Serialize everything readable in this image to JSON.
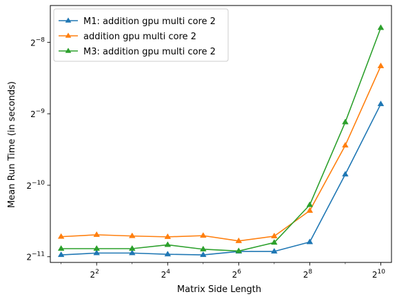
{
  "chart_data": {
    "type": "line",
    "title": "",
    "xlabel": "Matrix Side Length",
    "ylabel": "Mean Run Time (in seconds)",
    "x_scale": "log2",
    "y_scale": "log2",
    "x": [
      2,
      4,
      8,
      16,
      32,
      64,
      128,
      256,
      512,
      1024
    ],
    "x_ticks": [
      {
        "base": "2",
        "exp": "2",
        "value": 4
      },
      {
        "base": "2",
        "exp": "4",
        "value": 16
      },
      {
        "base": "2",
        "exp": "6",
        "value": 64
      },
      {
        "base": "2",
        "exp": "8",
        "value": 256
      },
      {
        "base": "2",
        "exp": "10",
        "value": 1024
      }
    ],
    "y_ticks": [
      {
        "base": "2",
        "exp": "−11",
        "value": 0.00048828125
      },
      {
        "base": "2",
        "exp": "−10",
        "value": 0.0009765625
      },
      {
        "base": "2",
        "exp": "−9",
        "value": 0.001953125
      },
      {
        "base": "2",
        "exp": "−8",
        "value": 0.00390625
      }
    ],
    "xlim": [
      1.62,
      1262
    ],
    "ylim": [
      0.000462,
      0.00558
    ],
    "grid": false,
    "legend_position": "top-left",
    "series": [
      {
        "name": "M1: addition gpu multi core 2",
        "color": "#1f77b4",
        "marker": "triangle",
        "values": [
          0.000497,
          0.000506,
          0.000506,
          0.0005,
          0.000497,
          0.000514,
          0.000514,
          0.000563,
          0.001085,
          0.002146
        ]
      },
      {
        "name": "addition gpu multi core 2",
        "color": "#ff7f0e",
        "marker": "triangle",
        "values": [
          0.000593,
          0.000604,
          0.000597,
          0.000592,
          0.000599,
          0.000569,
          0.000596,
          0.000763,
          0.001437,
          0.003102
        ]
      },
      {
        "name": "M3: addition gpu multi core 2",
        "color": "#2ca02c",
        "marker": "triangle",
        "values": [
          0.000528,
          0.000528,
          0.000528,
          0.000548,
          0.000525,
          0.000516,
          0.00056,
          0.000807,
          0.0018,
          0.004494
        ]
      }
    ]
  }
}
